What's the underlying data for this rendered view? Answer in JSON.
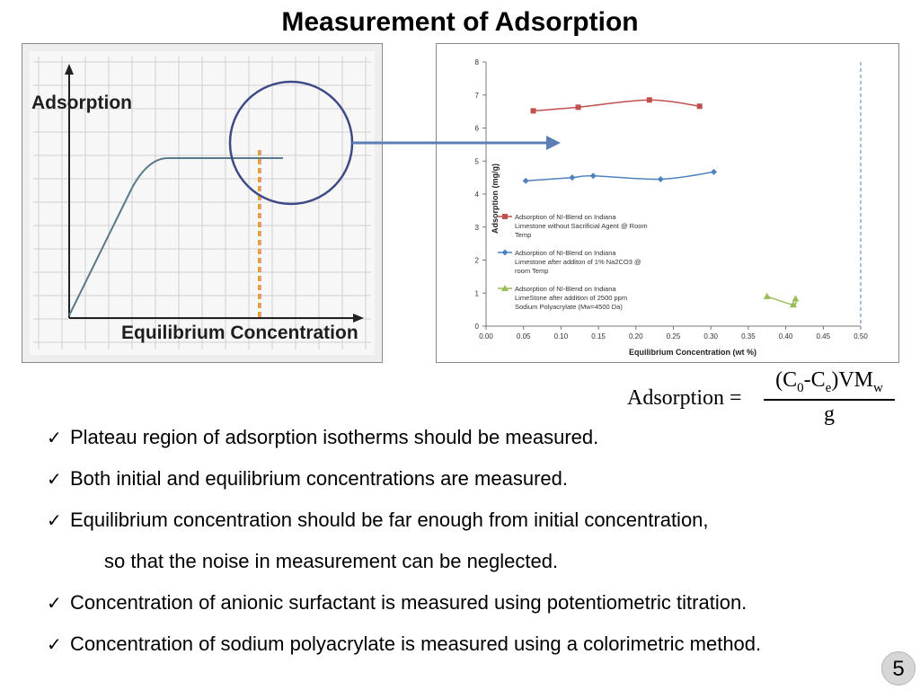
{
  "slide": {
    "title": "Measurement of Adsorption",
    "page_number": "5"
  },
  "schematic": {
    "ylabel": "Adsorption",
    "xlabel": "Equilibrium Concentration"
  },
  "formula": {
    "lhs": "Adsorption =",
    "numerator": "(C0-Ce)VMw",
    "denominator": "g"
  },
  "bullets": [
    {
      "text": "Plateau region of adsorption isotherms should be measured.",
      "checked": true
    },
    {
      "text": "Both initial and equilibrium concentrations are measured.",
      "checked": true
    },
    {
      "text": "Equilibrium concentration should be far enough from initial concentration,",
      "checked": true
    },
    {
      "text": "so that the noise in measurement can be neglected.",
      "checked": false
    },
    {
      "text": "Concentration of anionic surfactant is measured using potentiometric titration.",
      "checked": true
    },
    {
      "text": "Concentration of sodium polyacrylate is measured using a colorimetric method.",
      "checked": true
    }
  ],
  "chart_data": {
    "type": "line",
    "xlabel": "Equilibrium Concentration (wt %)",
    "ylabel": "Adsorption (mg/g)",
    "xlim": [
      0,
      0.5
    ],
    "ylim": [
      0,
      8
    ],
    "xticks": [
      "0.00",
      "0.05",
      "0.10",
      "0.15",
      "0.20",
      "0.25",
      "0.30",
      "0.35",
      "0.40",
      "0.45",
      "0.50"
    ],
    "yticks": [
      "0",
      "1",
      "2",
      "3",
      "4",
      "5",
      "6",
      "7",
      "8"
    ],
    "grid": false,
    "legend_position": "left",
    "vline_x": 0.5,
    "series": [
      {
        "name": "Adsorption of NI-Blend on Indiana Limestone without Sacrificial Agent @ Room Temp",
        "legend_lines": [
          "Adsorption of NI-Blend on Indiana",
          "Limestone without Sacrificial Agent @ Room",
          "Temp"
        ],
        "color": "#c0504d",
        "marker": "square",
        "points": [
          [
            0.063,
            6.52
          ],
          [
            0.123,
            6.63
          ],
          [
            0.218,
            6.85
          ],
          [
            0.285,
            6.66
          ]
        ]
      },
      {
        "name": "Adsorption of NI-Blend on Indiana Limestone after additon of 1% Na2CO3 @ room Temp",
        "legend_lines": [
          "Adsorption of NI-Blend on Indiana",
          "Limestone after additon of 1% Na2CO3 @",
          "room Temp"
        ],
        "color": "#4f81bd",
        "marker": "diamond",
        "points": [
          [
            0.053,
            4.4
          ],
          [
            0.115,
            4.5
          ],
          [
            0.143,
            4.55
          ],
          [
            0.233,
            4.45
          ],
          [
            0.304,
            4.67
          ]
        ]
      },
      {
        "name": "Adsorption of NI-Blend on Indiana LimeStone after addition of 2500 ppm Sodium Polyacrylate (Mw=4500 Da)",
        "legend_lines": [
          "Adsorption of NI-Blend on Indiana",
          "LimeStone after addition of 2500 ppm",
          "Sodium Polyacrylate (Mw=4500 Da)"
        ],
        "color": "#9bbb59",
        "marker": "triangle",
        "points": [
          [
            0.375,
            0.9
          ],
          [
            0.41,
            0.65
          ],
          [
            0.413,
            0.83
          ]
        ]
      }
    ]
  }
}
